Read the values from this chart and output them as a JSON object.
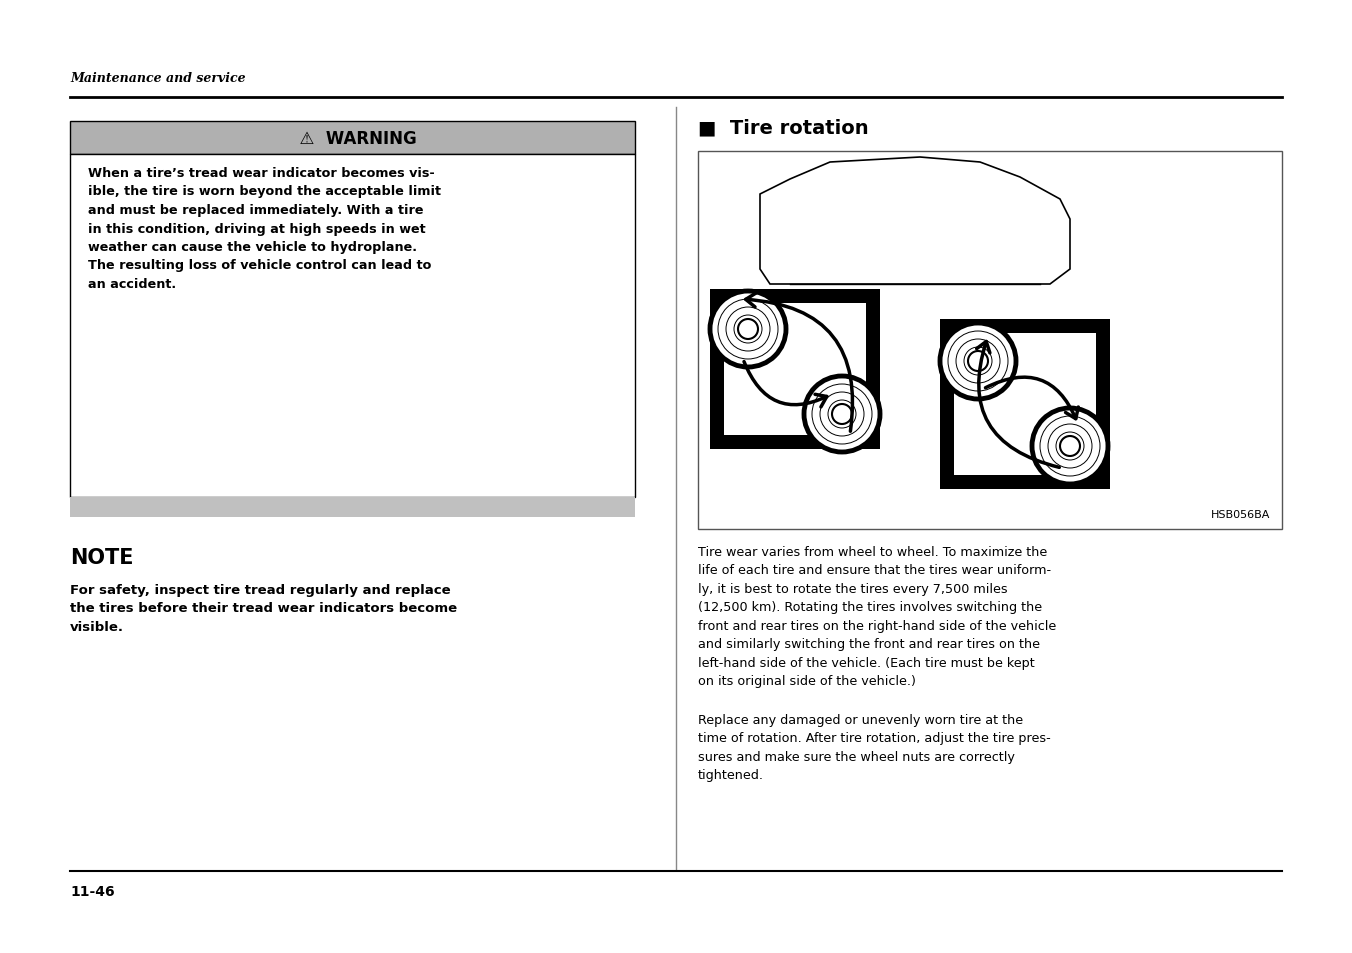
{
  "bg_color": "#ffffff",
  "page_width": 13.52,
  "page_height": 9.54,
  "dpi": 100,
  "header_italic": "Maintenance and service",
  "footer_page": "11-46",
  "warning_title": "  ⚠  WARNING",
  "warning_body": "When a tire’s tread wear indicator becomes vis-\nible, the tire is worn beyond the acceptable limit\nand must be replaced immediately. With a tire\nin this condition, driving at high speeds in wet\nweather can cause the vehicle to hydroplane.\nThe resulting loss of vehicle control can lead to\nan accident.",
  "note_title": "NOTE",
  "note_body": "For safety, inspect tire tread regularly and replace\nthe tires before their tread wear indicators become\nvisible.",
  "section_title": "■  Tire rotation",
  "image_caption": "HSB056BA",
  "body_text_1": "Tire wear varies from wheel to wheel. To maximize the\nlife of each tire and ensure that the tires wear uniform-\nly, it is best to rotate the tires every 7,500 miles\n(12,500 km). Rotating the tires involves switching the\nfront and rear tires on the right-hand side of the vehicle\nand similarly switching the front and rear tires on the\nleft-hand side of the vehicle. (Each tire must be kept\non its original side of the vehicle.)",
  "body_text_2": "Replace any damaged or unevenly worn tire at the\ntime of rotation. After tire rotation, adjust the tire pres-\nsures and make sure the wheel nuts are correctly\ntightened.",
  "warn_header_color": "#b0b0b0",
  "warn_bar_color": "#c0c0c0",
  "divider_color": "#000000",
  "text_color": "#000000"
}
